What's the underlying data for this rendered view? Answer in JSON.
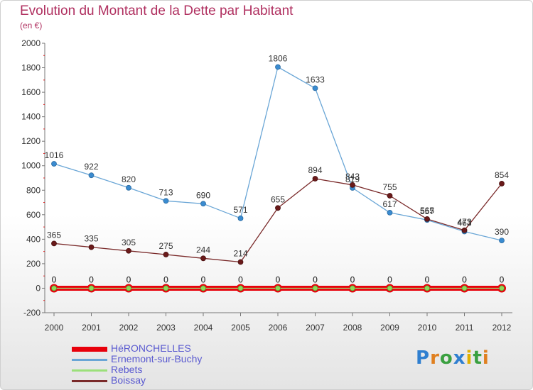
{
  "chart_data": {
    "type": "line",
    "title": "Evolution du Montant de la Dette par Habitant",
    "subtitle": "(en €)",
    "xlabel": "",
    "ylabel": "",
    "ylim": [
      -200,
      2000
    ],
    "yticks": [
      "-200",
      "0",
      "200",
      "400",
      "600",
      "800",
      "1000",
      "1200",
      "1400",
      "1600",
      "1800",
      "2000"
    ],
    "categories": [
      "2000",
      "2001",
      "2002",
      "2003",
      "2004",
      "2005",
      "2006",
      "2007",
      "2008",
      "2009",
      "2010",
      "2011",
      "2012"
    ],
    "grid": false,
    "legend_position": "bottom-left",
    "series": [
      {
        "name": "HéRONCHELLES",
        "color": "#e8000b",
        "values": [
          0,
          0,
          0,
          0,
          0,
          0,
          0,
          0,
          0,
          0,
          0,
          0,
          0
        ],
        "labels": [
          "0",
          "0",
          "0",
          "0",
          "0",
          "0",
          "0",
          "0",
          "0",
          "0",
          "0",
          "0",
          "0"
        ]
      },
      {
        "name": "Ernemont-sur-Buchy",
        "color": "#6aa6d6",
        "values": [
          1016,
          922,
          820,
          713,
          690,
          571,
          1806,
          1633,
          819,
          617,
          557,
          463,
          390
        ],
        "labels": [
          "1016",
          "922",
          "820",
          "713",
          "690",
          "571",
          "1806",
          "1633",
          "819",
          "617",
          "557",
          "463",
          "390"
        ]
      },
      {
        "name": "Rebets",
        "color": "#9be07a",
        "values": [
          0,
          0,
          0,
          0,
          0,
          0,
          0,
          0,
          0,
          0,
          0,
          0,
          0
        ],
        "labels": [
          "0",
          "0",
          "0",
          "0",
          "0",
          "0",
          "0",
          "0",
          "0",
          "0",
          "0",
          "0",
          "0"
        ]
      },
      {
        "name": "Boissay",
        "color": "#7a2a2a",
        "values": [
          365,
          335,
          305,
          275,
          244,
          214,
          655,
          894,
          843,
          755,
          565,
          473,
          854
        ],
        "labels": [
          "365",
          "335",
          "305",
          "275",
          "244",
          "214",
          "655",
          "894",
          "843",
          "755",
          "565",
          "473",
          "854"
        ]
      }
    ]
  },
  "logo": {
    "text": "Proxiti"
  }
}
